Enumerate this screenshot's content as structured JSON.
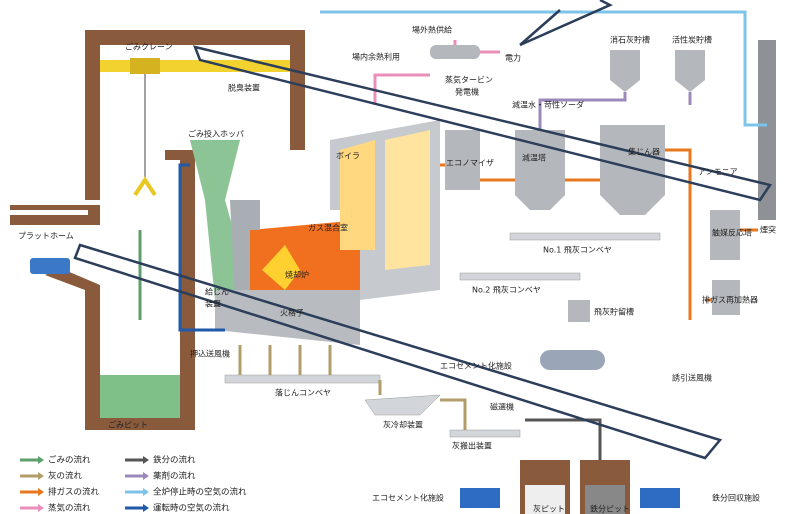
{
  "components": [
    "ごみクレーン",
    "場外熱供給",
    "場内余熱利用",
    "電力",
    "蒸気タービン",
    "発電機",
    "消石灰貯槽",
    "活性炭貯槽",
    "脱臭装置",
    "減温水・苛性ソーダ",
    "ごみ投入ホッパ",
    "ボイラ",
    "エコノマイザ",
    "減温塔",
    "集じん器",
    "アンモニア",
    "煙突",
    "プラットホーム",
    "ガス混合室",
    "焼却炉",
    "触媒反応塔",
    "No.1 飛灰コンベヤ",
    "No.2 飛灰コンベヤ",
    "排ガス再加熱器",
    "給じん",
    "装置",
    "火格子",
    "飛灰貯留槽",
    "押込送風機",
    "エコセメント化施設",
    "誘引送風機",
    "落じんコンベヤ",
    "ごみピット",
    "灰冷却装置",
    "磁選機",
    "灰搬出装置",
    "エコセメント化施設",
    "鉄分回収施設",
    "灰ピット",
    "鉄分ピット"
  ],
  "legend": [
    {
      "label": "ごみの流れ",
      "color": "#5c9e6c"
    },
    {
      "label": "灰の流れ",
      "color": "#b29c6a"
    },
    {
      "label": "排ガスの流れ",
      "color": "#e8781e"
    },
    {
      "label": "蒸気の流れ",
      "color": "#ea8fba"
    },
    {
      "label": "鉄分の流れ",
      "color": "#555555"
    },
    {
      "label": "薬剤の流れ",
      "color": "#9c88ba"
    },
    {
      "label": "全炉停止時の空気の流れ",
      "color": "#7cc4ea"
    },
    {
      "label": "運転時の空気の流れ",
      "color": "#1e5aa8"
    }
  ]
}
